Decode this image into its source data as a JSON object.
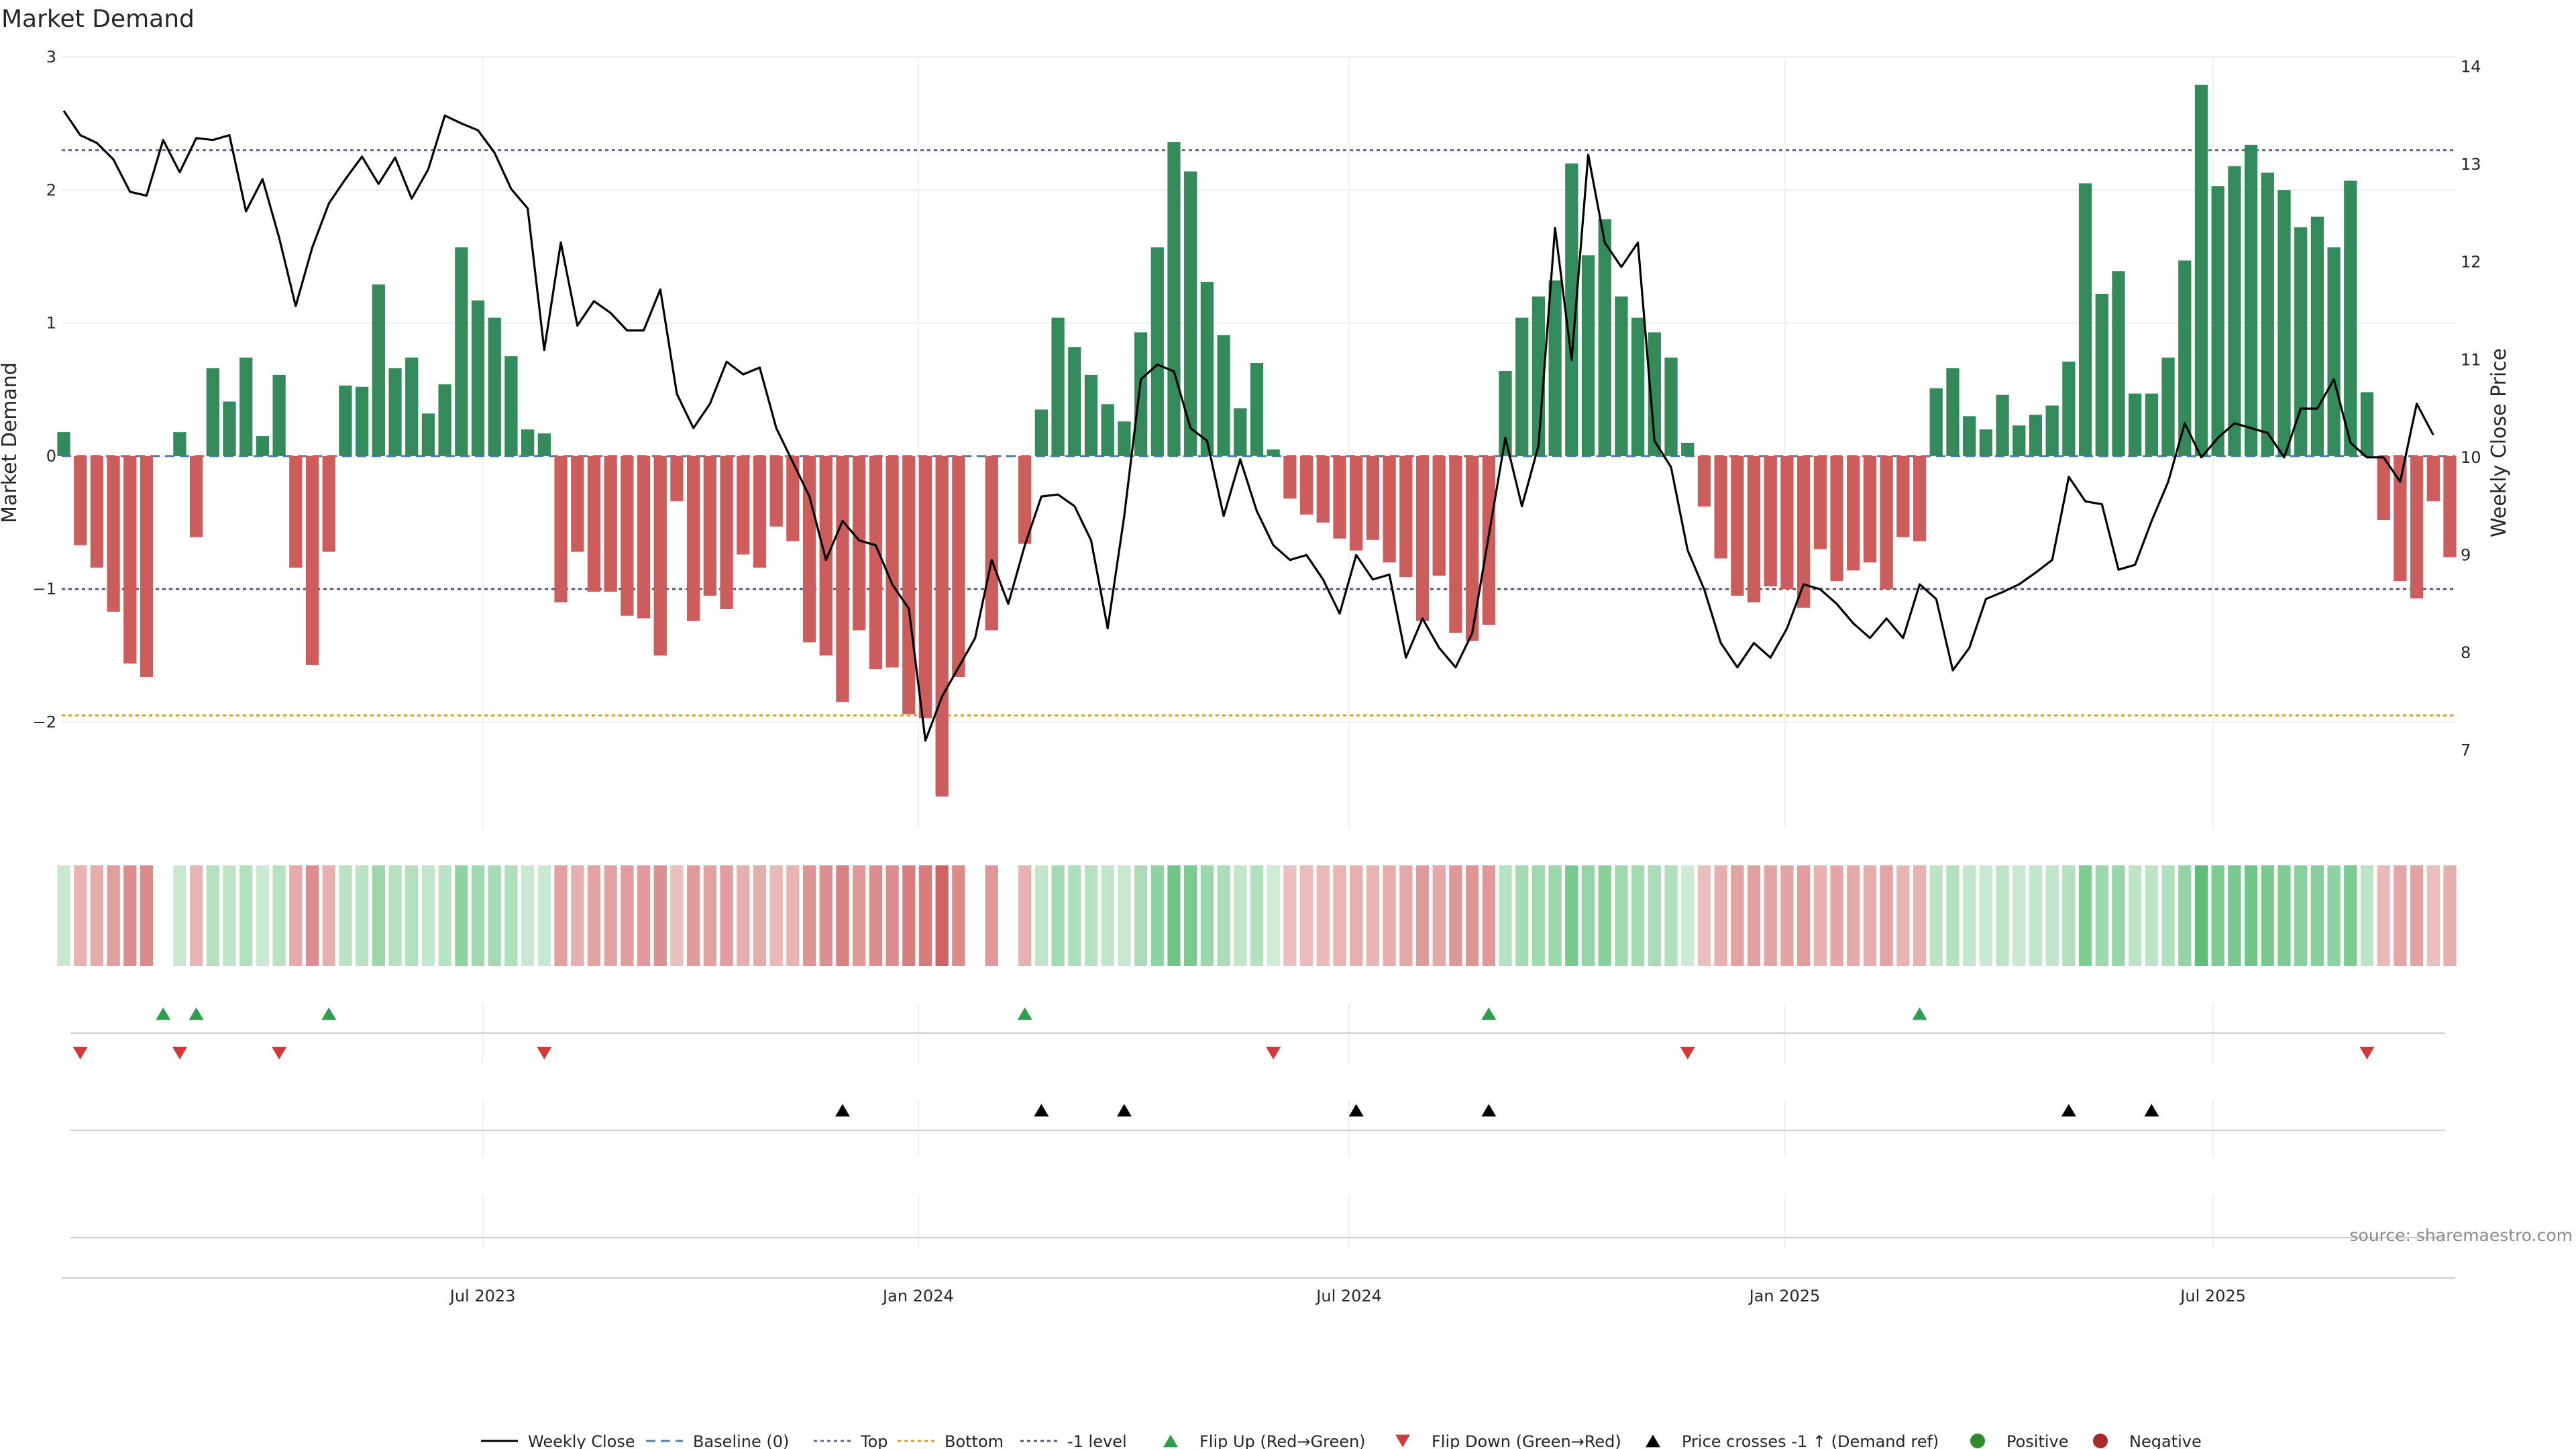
{
  "chart_data": {
    "type": "bar",
    "title": "Market Demand",
    "ylabel": "Market Demand",
    "y2label": "Weekly Close Price",
    "ylim": [
      -2.8,
      3.0
    ],
    "y2lim": [
      6.2,
      14.1
    ],
    "yticks": [
      -2,
      -1,
      0,
      1,
      2,
      3
    ],
    "yticks_labels": [
      "−2",
      "−1",
      "0",
      "1",
      "2",
      "3"
    ],
    "y2ticks": [
      7,
      8,
      9,
      10,
      11,
      12,
      13,
      14
    ],
    "x_start": "2023-01-05",
    "x_step_days": 7,
    "xticks": [
      {
        "date": "2023-07-01",
        "label": "Jul 2023"
      },
      {
        "date": "2024-01-01",
        "label": "Jan 2024"
      },
      {
        "date": "2024-07-01",
        "label": "Jul 2024"
      },
      {
        "date": "2025-01-01",
        "label": "Jan 2025"
      },
      {
        "date": "2025-07-01",
        "label": "Jul 2025"
      }
    ],
    "reference_lines": [
      {
        "name": "Top",
        "value": 2.3,
        "color": "#6a5f9c",
        "style": "dotted"
      },
      {
        "name": "Bottom",
        "value": -1.95,
        "color": "#e39a2b",
        "style": "dotted"
      },
      {
        "name": "-1 level",
        "value": -1.0,
        "color": "#555577",
        "style": "dotted"
      },
      {
        "name": "Baseline (0)",
        "value": 0,
        "color": "#4a7fb5",
        "style": "dashed"
      }
    ],
    "series": [
      {
        "name": "Market Demand",
        "kind": "bar",
        "values": [
          0.18,
          -0.67,
          -0.84,
          -1.17,
          -1.56,
          -1.66,
          0.0,
          0.18,
          -0.61,
          0.66,
          0.41,
          0.74,
          0.15,
          0.61,
          -0.84,
          -1.57,
          -0.72,
          0.53,
          0.52,
          1.29,
          0.66,
          0.74,
          0.32,
          0.54,
          1.57,
          1.17,
          1.04,
          0.75,
          0.2,
          0.17,
          -1.1,
          -0.72,
          -1.02,
          -1.02,
          -1.2,
          -1.22,
          -1.5,
          -0.34,
          -1.24,
          -1.05,
          -1.15,
          -0.74,
          -0.84,
          -0.53,
          -0.64,
          -1.4,
          -1.5,
          -1.85,
          -1.31,
          -1.6,
          -1.59,
          -1.94,
          -1.97,
          -2.56,
          -1.66,
          0.0,
          -1.31,
          -0.0,
          -0.66,
          0.35,
          1.04,
          0.82,
          0.61,
          0.39,
          0.26,
          0.93,
          1.57,
          2.36,
          2.14,
          1.31,
          0.91,
          0.36,
          0.7,
          0.05,
          -0.32,
          -0.44,
          -0.5,
          -0.62,
          -0.71,
          -0.63,
          -0.8,
          -0.91,
          -1.24,
          -0.9,
          -1.33,
          -1.39,
          -1.27,
          0.64,
          1.04,
          1.2,
          1.32,
          2.2,
          1.51,
          1.78,
          1.2,
          1.04,
          0.93,
          0.74,
          0.1,
          -0.38,
          -0.77,
          -1.05,
          -1.1,
          -0.98,
          -1.0,
          -1.14,
          -0.7,
          -0.94,
          -0.86,
          -0.8,
          -1.0,
          -0.61,
          -0.64,
          0.51,
          0.66,
          0.3,
          0.2,
          0.46,
          0.23,
          0.31,
          0.38,
          0.71,
          2.05,
          1.22,
          1.39,
          0.47,
          0.47,
          0.74,
          1.47,
          2.79,
          2.03,
          2.18,
          2.34,
          2.13,
          2.0,
          1.72,
          1.8,
          1.57,
          2.07,
          0.48,
          -0.48,
          -0.94,
          -1.07,
          -0.34,
          -0.76
        ]
      },
      {
        "name": "Weekly Close",
        "kind": "line",
        "axis": "right",
        "values": [
          13.55,
          13.3,
          13.22,
          13.05,
          12.72,
          12.68,
          13.25,
          12.92,
          13.27,
          13.25,
          13.3,
          12.52,
          12.85,
          12.25,
          11.55,
          12.15,
          12.6,
          12.85,
          13.08,
          12.8,
          13.07,
          12.65,
          12.95,
          13.5,
          13.42,
          13.35,
          13.12,
          12.75,
          12.55,
          11.1,
          12.2,
          11.35,
          11.6,
          11.48,
          11.3,
          11.3,
          11.72,
          10.65,
          10.3,
          10.55,
          10.98,
          10.85,
          10.92,
          10.3,
          9.95,
          9.6,
          8.95,
          9.35,
          9.15,
          9.1,
          8.7,
          8.45,
          7.1,
          7.55,
          7.85,
          8.15,
          8.95,
          8.5,
          9.1,
          9.6,
          9.62,
          9.5,
          9.15,
          8.25,
          9.4,
          10.8,
          10.95,
          10.88,
          10.3,
          10.17,
          9.4,
          9.98,
          9.45,
          9.1,
          8.95,
          9.0,
          8.75,
          8.4,
          9.0,
          8.75,
          8.8,
          7.95,
          8.35,
          8.05,
          7.85,
          8.2,
          9.2,
          10.2,
          9.5,
          10.12,
          12.35,
          11.0,
          13.1,
          12.2,
          11.95,
          12.2,
          10.17,
          9.9,
          9.05,
          8.65,
          8.1,
          7.85,
          8.1,
          7.95,
          8.25,
          8.7,
          8.65,
          8.5,
          8.3,
          8.15,
          8.35,
          8.15,
          8.7,
          8.55,
          7.82,
          8.05,
          8.55,
          8.62,
          8.7,
          8.82,
          8.95,
          9.8,
          9.55,
          9.52,
          8.85,
          8.9,
          9.35,
          9.75,
          10.35,
          10.0,
          10.2,
          10.35,
          10.3,
          10.25,
          10.0,
          10.5,
          10.5,
          10.8,
          10.15,
          10.0,
          10.0,
          9.75,
          10.55,
          10.23
        ]
      }
    ],
    "heat_strip": {
      "name": "Demand intensity",
      "positive_color": "#5fbf78",
      "negative_color": "#cd5a5a"
    },
    "events": {
      "flip_up": [
        6,
        8,
        16,
        58,
        86,
        112
      ],
      "flip_down": [
        1,
        7,
        13,
        29,
        73,
        98,
        139
      ],
      "price_cross": [
        47,
        59,
        64,
        78,
        86,
        121,
        126
      ]
    },
    "legend": {
      "position": "bottom",
      "items": [
        {
          "label": "Weekly Close",
          "marker": "line",
          "color": "#000000"
        },
        {
          "label": "Baseline (0)",
          "marker": "dashed",
          "color": "#4a7fb5"
        },
        {
          "label": "Top",
          "marker": "dotted",
          "color": "#6a5f9c"
        },
        {
          "label": "Bottom",
          "marker": "dotted",
          "color": "#e39a2b"
        },
        {
          "label": "-1 level",
          "marker": "dotted",
          "color": "#555577"
        },
        {
          "label": "Flip Up (Red→Green)",
          "marker": "triangle-up",
          "color": "#2e9e4e"
        },
        {
          "label": "Flip Down (Green→Red)",
          "marker": "triangle-down",
          "color": "#d03a3a"
        },
        {
          "label": "Price crosses -1 ↑ (Demand ref)",
          "marker": "triangle-up",
          "color": "#000000"
        },
        {
          "label": "Positive",
          "marker": "circle",
          "color": "#2e8b2e"
        },
        {
          "label": "Negative",
          "marker": "circle",
          "color": "#a52a2a"
        }
      ]
    },
    "source_text": "source: sharemaestro.com",
    "colors": {
      "bar_positive": "#338a5a",
      "bar_negative": "#cd5c5c",
      "line": "#000000"
    }
  }
}
